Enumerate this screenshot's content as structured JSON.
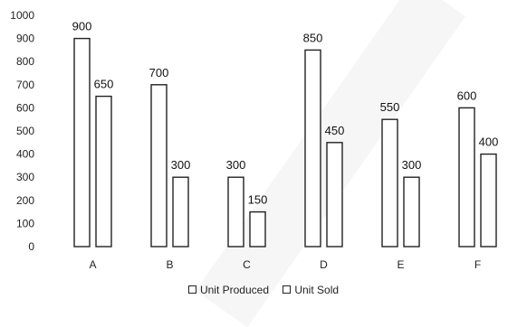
{
  "chart_data": {
    "type": "bar",
    "categories": [
      "A",
      "B",
      "C",
      "D",
      "E",
      "F"
    ],
    "series": [
      {
        "name": "Unit Produced",
        "values": [
          900,
          700,
          300,
          850,
          550,
          600
        ]
      },
      {
        "name": "Unit Sold",
        "values": [
          650,
          300,
          150,
          450,
          300,
          400
        ]
      }
    ],
    "ylim": [
      0,
      1000
    ],
    "yticks": [
      "0",
      "100",
      "200",
      "300",
      "400",
      "500",
      "600",
      "700",
      "800",
      "900",
      "1000"
    ],
    "grid": false,
    "legend_position": "bottom",
    "colors": {
      "bar_fill": "#ffffff",
      "bar_stroke": "#222222",
      "decor_band": "#f6f6f6"
    }
  }
}
